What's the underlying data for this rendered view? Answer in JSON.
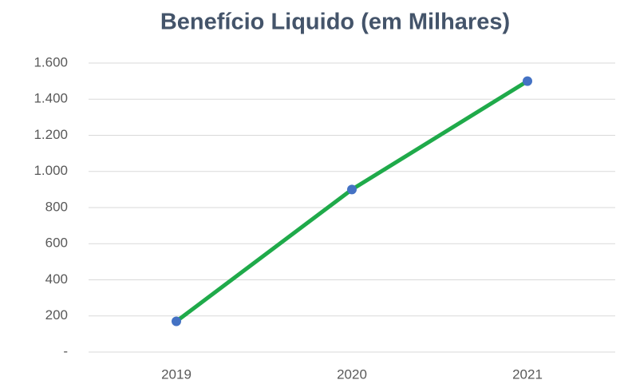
{
  "chart_data": {
    "type": "line",
    "title": "Benefício Liquido (em Milhares)",
    "categories": [
      "2019",
      "2020",
      "2021"
    ],
    "values": [
      170,
      900,
      1500
    ],
    "color": "#1faa4a",
    "marker_color": "#4472c4",
    "ylim": [
      0,
      1600
    ],
    "yticks": [
      {
        "value": 0,
        "label": "-"
      },
      200,
      400,
      600,
      800,
      {
        "value": 1000,
        "label": "1.000"
      },
      {
        "value": 1200,
        "label": "1.200"
      },
      {
        "value": 1400,
        "label": "1.400"
      },
      {
        "value": 1600,
        "label": "1.600"
      }
    ],
    "grid": true
  }
}
